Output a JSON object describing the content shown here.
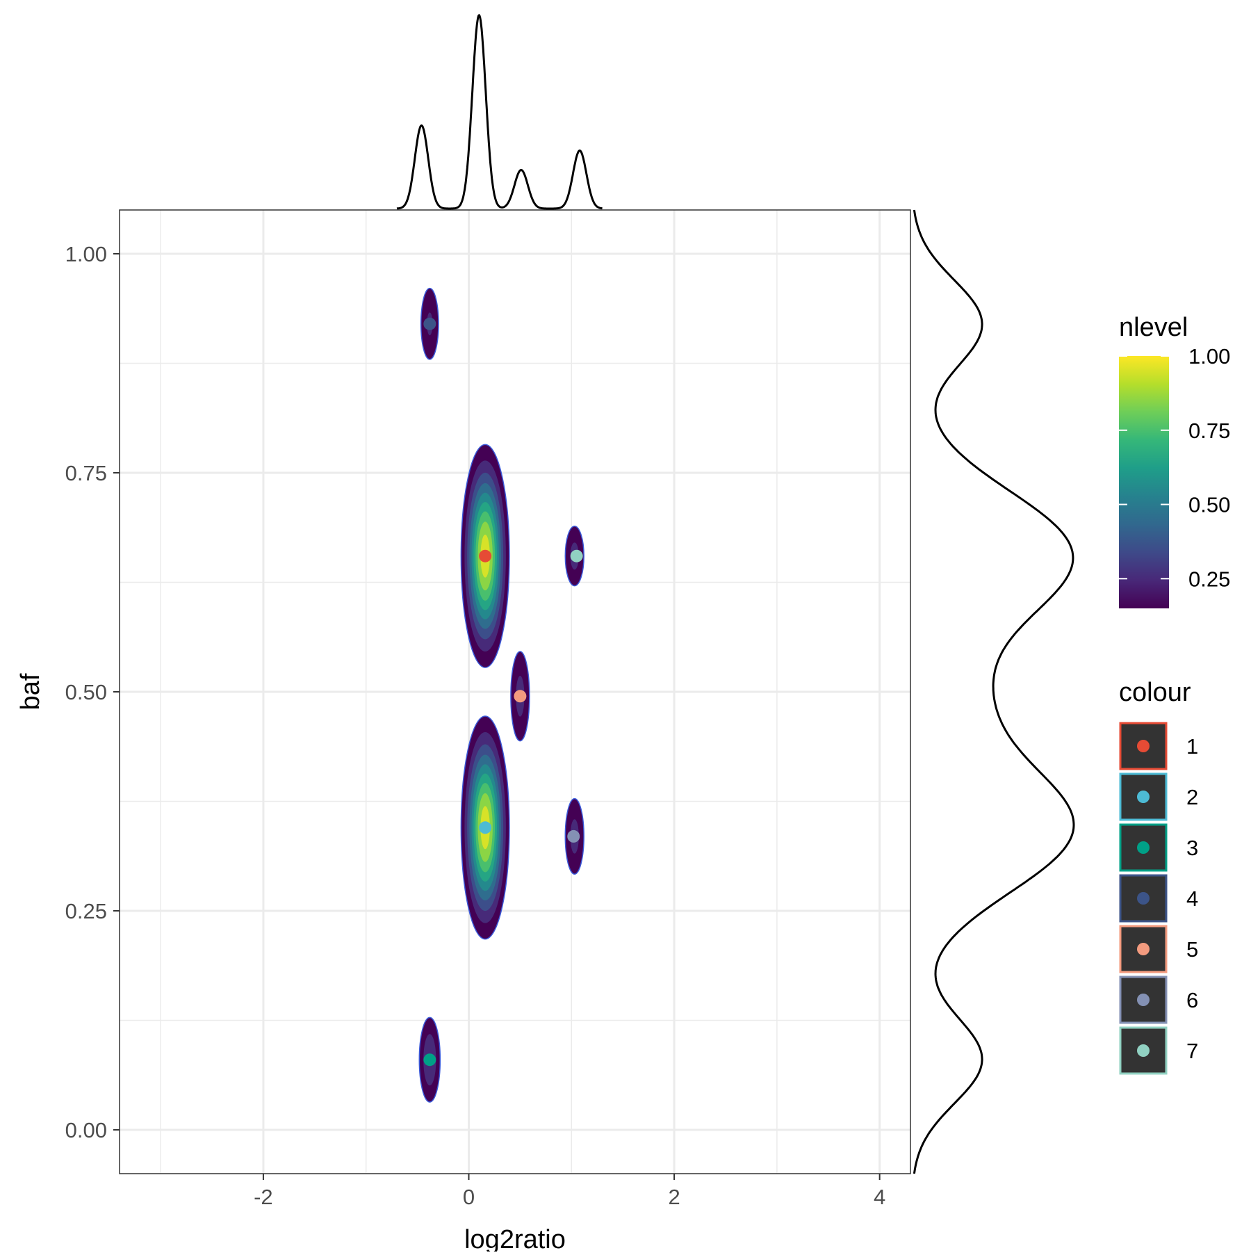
{
  "chart_data": {
    "type": "scatter",
    "xlabel": "log2ratio",
    "ylabel": "baf",
    "xlim": [
      -3.4,
      4.3
    ],
    "ylim": [
      -0.05,
      1.05
    ],
    "x_ticks": [
      -2,
      0,
      2,
      4
    ],
    "x_tick_labels": [
      "-2",
      "0",
      "2",
      "4"
    ],
    "y_ticks": [
      0,
      0.25,
      0.5,
      0.75,
      1
    ],
    "y_tick_labels": [
      "0.00",
      "0.25",
      "0.50",
      "0.75",
      "1.00"
    ],
    "grid": true,
    "points": [
      {
        "cluster": "1",
        "x": 0.16,
        "y": 0.655
      },
      {
        "cluster": "2",
        "x": 0.16,
        "y": 0.345
      },
      {
        "cluster": "3",
        "x": -0.38,
        "y": 0.08
      },
      {
        "cluster": "4",
        "x": -0.38,
        "y": 0.92
      },
      {
        "cluster": "5",
        "x": 0.5,
        "y": 0.495
      },
      {
        "cluster": "6",
        "x": 1.02,
        "y": 0.335
      },
      {
        "cluster": "7",
        "x": 1.05,
        "y": 0.655
      }
    ],
    "density_peaks": [
      {
        "x": 0.16,
        "y": 0.655,
        "sx": 0.12,
        "sy": 0.065,
        "level": 1.0
      },
      {
        "x": 0.16,
        "y": 0.345,
        "sx": 0.12,
        "sy": 0.065,
        "level": 1.0
      },
      {
        "x": 0.5,
        "y": 0.495,
        "sx": 0.08,
        "sy": 0.045,
        "level": 0.28
      },
      {
        "x": 1.03,
        "y": 0.655,
        "sx": 0.08,
        "sy": 0.03,
        "level": 0.28
      },
      {
        "x": 1.03,
        "y": 0.335,
        "sx": 0.08,
        "sy": 0.038,
        "level": 0.28
      },
      {
        "x": -0.38,
        "y": 0.08,
        "sx": 0.08,
        "sy": 0.038,
        "level": 0.33
      },
      {
        "x": -0.38,
        "y": 0.92,
        "sx": 0.08,
        "sy": 0.038,
        "level": 0.26
      }
    ],
    "x_marginal_peaks": [
      {
        "x": -0.46,
        "s": 0.065,
        "h": 0.43
      },
      {
        "x": 0.1,
        "s": 0.065,
        "h": 1.0
      },
      {
        "x": 0.51,
        "s": 0.065,
        "h": 0.2
      },
      {
        "x": 1.08,
        "s": 0.065,
        "h": 0.3
      }
    ],
    "y_marginal_peaks": [
      {
        "y": 0.08,
        "s": 0.05,
        "h": 0.35
      },
      {
        "y": 0.345,
        "s": 0.075,
        "h": 0.8
      },
      {
        "y": 0.495,
        "s": 0.06,
        "h": 0.22
      },
      {
        "y": 0.655,
        "s": 0.075,
        "h": 0.8
      },
      {
        "y": 0.92,
        "s": 0.05,
        "h": 0.35
      }
    ],
    "legend_fill": {
      "title": "nlevel",
      "ticks": [
        0.25,
        0.5,
        0.75,
        1.0
      ],
      "tick_labels": [
        "0.25",
        "0.50",
        "0.75",
        "1.00"
      ],
      "range": [
        0.15,
        1.0
      ],
      "placement": "right"
    },
    "legend_colour": {
      "title": "colour",
      "placement": "right",
      "items": [
        {
          "label": "1",
          "color": "#e64b35"
        },
        {
          "label": "2",
          "color": "#4dbbd5"
        },
        {
          "label": "3",
          "color": "#00a087"
        },
        {
          "label": "4",
          "color": "#3c5488"
        },
        {
          "label": "5",
          "color": "#f39b7f"
        },
        {
          "label": "6",
          "color": "#8491b4"
        },
        {
          "label": "7",
          "color": "#91d1c2"
        }
      ]
    }
  }
}
